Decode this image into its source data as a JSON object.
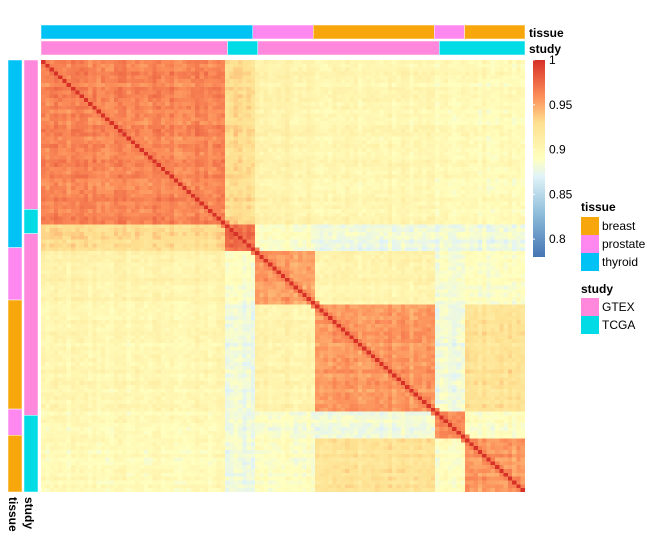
{
  "chart_data": {
    "type": "heatmap",
    "title": "",
    "samples_order": [
      {
        "tissue": "thyroid",
        "study": "GTEX",
        "count": 43
      },
      {
        "tissue": "thyroid",
        "study": "TCGA",
        "count": 7
      },
      {
        "tissue": "prostate",
        "study": "TCGA",
        "count": 14
      },
      {
        "tissue": "breast",
        "study": "TCGA",
        "count": 28
      },
      {
        "tissue": "prostate",
        "study": "TCGA",
        "count": 7
      },
      {
        "tissue": "breast",
        "study": "TCGA",
        "count": 14
      }
    ],
    "block_similarity": [
      [
        0.962,
        0.93,
        0.905,
        0.9,
        0.895,
        0.895
      ],
      [
        0.93,
        0.975,
        0.89,
        0.88,
        0.88,
        0.88
      ],
      [
        0.905,
        0.89,
        0.955,
        0.905,
        0.885,
        0.89
      ],
      [
        0.9,
        0.88,
        0.905,
        0.955,
        0.88,
        0.925
      ],
      [
        0.895,
        0.88,
        0.885,
        0.88,
        0.96,
        0.89
      ],
      [
        0.895,
        0.88,
        0.89,
        0.925,
        0.89,
        0.955
      ]
    ],
    "color_scale": {
      "min": 0.78,
      "max": 1.0,
      "ticks": [
        "0.8",
        "0.85",
        "0.9",
        "0.95",
        "1"
      ],
      "tick_values": [
        0.8,
        0.85,
        0.9,
        0.95,
        1.0
      ],
      "stops": [
        {
          "v": 0.78,
          "c": "#4575b4"
        },
        {
          "v": 0.83,
          "c": "#91bfdb"
        },
        {
          "v": 0.87,
          "c": "#e0f3f8"
        },
        {
          "v": 0.89,
          "c": "#ffffbf"
        },
        {
          "v": 0.93,
          "c": "#fee090"
        },
        {
          "v": 0.96,
          "c": "#fc8d59"
        },
        {
          "v": 1.0,
          "c": "#d73027"
        }
      ]
    },
    "col_annotation": {
      "tissue": [
        "thyroid",
        "prostate",
        "breast",
        "prostate",
        "breast"
      ],
      "tissue_widths": [
        42,
        12,
        24,
        6,
        12
      ],
      "study": [
        "GTEX",
        "TCGA",
        "GTEX",
        "TCGA"
      ],
      "study_widths": [
        37,
        6,
        36,
        17
      ]
    },
    "row_annotation": {
      "tissue": [
        "thyroid",
        "prostate",
        "breast",
        "prostate",
        "breast"
      ],
      "tissue_heights": [
        43,
        12,
        25,
        6,
        13
      ],
      "study": [
        "GTEX",
        "TCGA",
        "GTEX",
        "TCGA"
      ],
      "study_heights": [
        37,
        6,
        45,
        19
      ]
    },
    "annotation_labels": {
      "top_tissue": "tissue",
      "top_study": "study",
      "left_tissue": "tissue",
      "left_study": "study"
    }
  },
  "legend": {
    "tissue_title": "tissue",
    "tissue_items": [
      {
        "label": "breast",
        "color": "#f7a70c"
      },
      {
        "label": "prostate",
        "color": "#ff88f0"
      },
      {
        "label": "thyroid",
        "color": "#00c2f5"
      }
    ],
    "study_title": "study",
    "study_items": [
      {
        "label": "GTEX",
        "color": "#ff88dd"
      },
      {
        "label": "TCGA",
        "color": "#00dbe5"
      }
    ]
  }
}
